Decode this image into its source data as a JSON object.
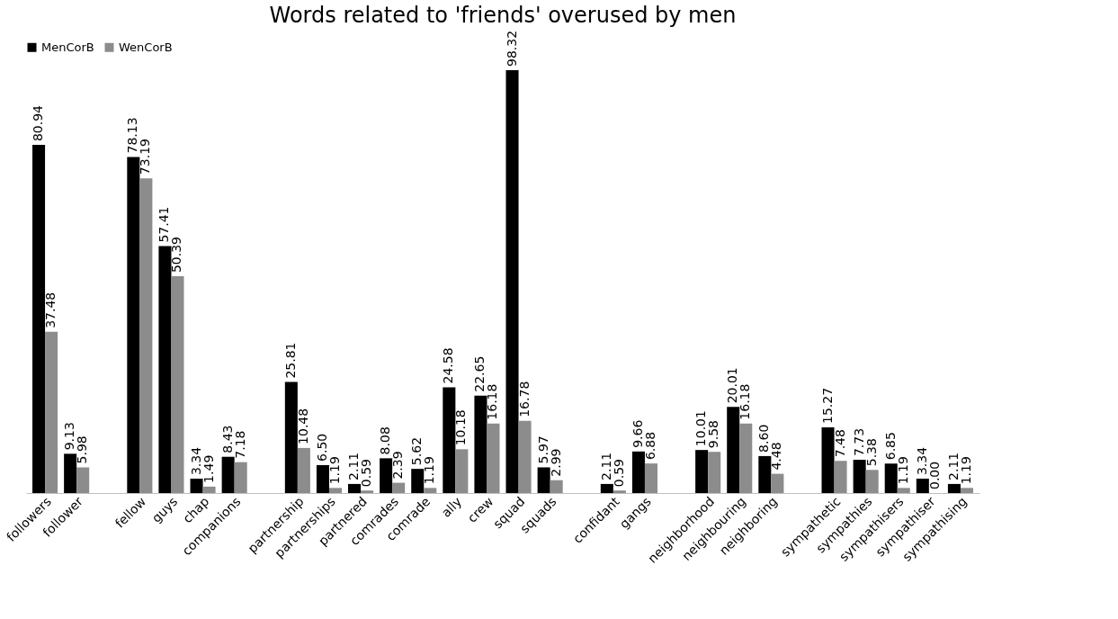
{
  "chart_data": {
    "type": "bar",
    "title": "Words related to 'friends' overused by men",
    "categories": [
      "followers",
      "follower",
      null,
      "fellow",
      "guys",
      "chap",
      "companions",
      null,
      "partnership",
      "partnerships",
      "partnered",
      "comrades",
      "comrade",
      "ally",
      "crew",
      "squad",
      "squads",
      null,
      "confidant",
      "gangs",
      null,
      "neighborhood",
      "neighbouring",
      "neighboring",
      null,
      "sympathetic",
      "sympathies",
      "sympathisers",
      "sympathiser",
      "sympathising"
    ],
    "series": [
      {
        "name": "MenCorB",
        "color": "#000000",
        "values": [
          80.94,
          9.13,
          null,
          78.13,
          57.41,
          3.34,
          8.43,
          null,
          25.81,
          6.5,
          2.11,
          8.08,
          5.62,
          24.58,
          22.65,
          98.32,
          5.97,
          null,
          2.11,
          9.66,
          null,
          10.01,
          20.01,
          8.6,
          null,
          15.27,
          7.73,
          6.85,
          3.34,
          2.11
        ],
        "value_labels": [
          "80.94",
          "9.13",
          null,
          "78.13",
          "57.41",
          "3.34",
          "8.43",
          null,
          "25.81",
          "6.50",
          "2.11",
          "8.08",
          "5.62",
          "24.58",
          "22.65",
          "98.32",
          "5.97",
          null,
          "2.11",
          "9.66",
          null,
          "10.01",
          "20.01",
          "8.60",
          null,
          "15.27",
          "7.73",
          "6.85",
          "3.34",
          "2.11"
        ]
      },
      {
        "name": "WenCorB",
        "color": "#8c8c8c",
        "values": [
          37.48,
          5.98,
          null,
          73.19,
          50.39,
          1.49,
          7.18,
          null,
          10.48,
          1.19,
          0.59,
          2.39,
          1.19,
          10.18,
          16.18,
          16.78,
          2.99,
          null,
          0.59,
          6.88,
          null,
          9.58,
          16.18,
          4.48,
          null,
          7.48,
          5.38,
          1.19,
          0.0,
          1.19
        ],
        "value_labels": [
          "37.48",
          "5.98",
          null,
          "73.19",
          "50.39",
          "1.49",
          "7.18",
          null,
          "10.48",
          "1.19",
          "0.59",
          "2.39",
          "1.19",
          "10.18",
          "16.18",
          "16.78",
          "2.99",
          null,
          "0.59",
          "6.88",
          null,
          "9.58",
          "16.18",
          "4.48",
          null,
          "7.48",
          "5.38",
          "1.19",
          "0.00",
          "1.19"
        ]
      }
    ],
    "legend": "top",
    "grid": false
  }
}
